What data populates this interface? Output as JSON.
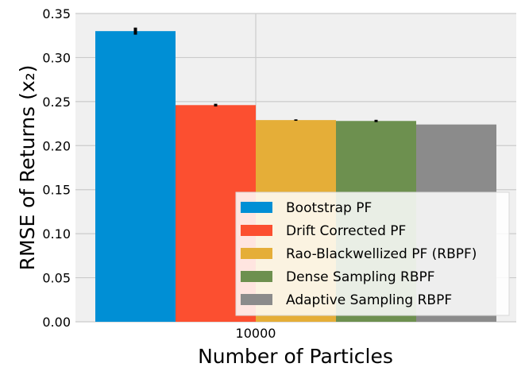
{
  "chart_data": {
    "type": "bar",
    "categories": [
      "10000"
    ],
    "xlabel": "Number of Particles",
    "ylabel": "RMSE of Returns (x₂)",
    "ylim": [
      0,
      0.35
    ],
    "yticks": [
      "0.00",
      "0.05",
      "0.10",
      "0.15",
      "0.20",
      "0.25",
      "0.30",
      "0.35"
    ],
    "grid": true,
    "legend_position": "lower-right",
    "series": [
      {
        "name": "Bootstrap PF",
        "values": [
          0.33
        ],
        "error": [
          0.004
        ],
        "color": "#008fd5"
      },
      {
        "name": "Drift Corrected PF",
        "values": [
          0.246
        ],
        "error": [
          0.0015
        ],
        "color": "#fc4f30"
      },
      {
        "name": "Rao-Blackwellized PF (RBPF)",
        "values": [
          0.229
        ],
        "error": [
          0.0008
        ],
        "color": "#e5ae38"
      },
      {
        "name": "Dense Sampling RBPF",
        "values": [
          0.228
        ],
        "error": [
          0.0013
        ],
        "color": "#6d904f"
      },
      {
        "name": "Adaptive Sampling RBPF",
        "values": [
          0.224
        ],
        "error": [
          0.0
        ],
        "color": "#8b8b8b"
      }
    ]
  }
}
